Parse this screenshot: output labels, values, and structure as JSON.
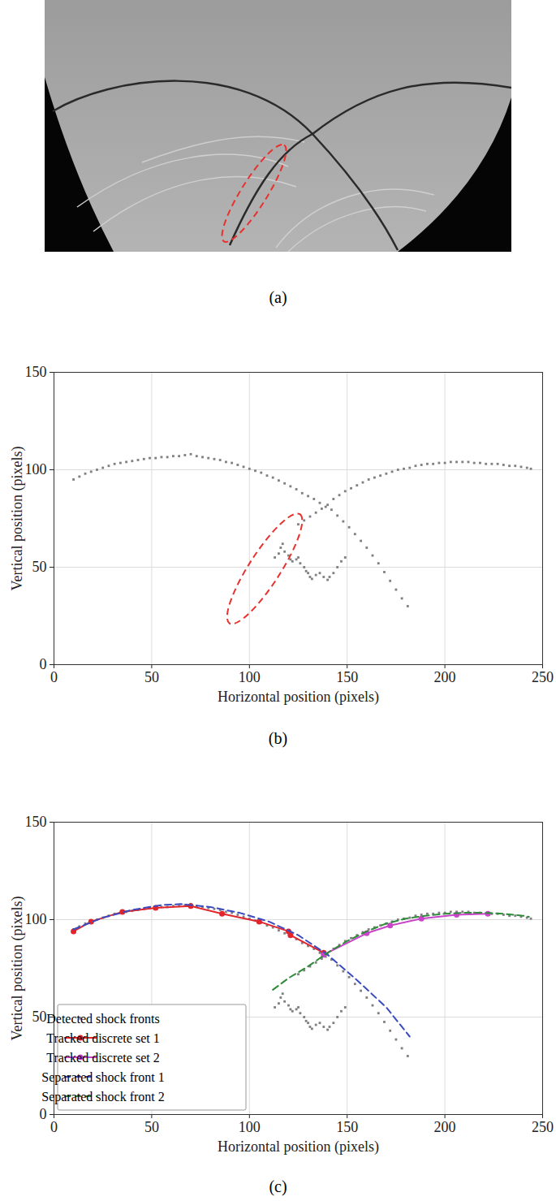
{
  "chart_data": [
    {
      "type": "image",
      "caption": "(a)"
    },
    {
      "type": "scatter",
      "caption": "(b)",
      "xlabel": "Horizontal position (pixels)",
      "ylabel": "Vertical position (pixels)",
      "xlim": [
        0,
        250
      ],
      "ylim": [
        0,
        150
      ],
      "xticks": [
        0,
        50,
        100,
        150,
        200,
        250
      ],
      "yticks": [
        0,
        50,
        100,
        150
      ],
      "grid": true,
      "series": [
        {
          "color": "#808080",
          "marker": "square",
          "x": [
            10,
            13,
            16,
            19,
            22,
            25,
            28,
            31,
            34,
            37,
            40,
            43,
            46,
            49,
            52,
            55,
            58,
            61,
            64,
            67,
            70,
            73,
            76,
            79,
            82,
            85,
            88,
            91,
            94,
            97,
            100,
            103,
            106,
            109,
            112,
            115,
            118,
            121,
            124,
            127,
            130,
            133,
            136,
            139,
            142,
            145,
            148,
            151,
            154,
            157,
            160,
            163,
            166,
            169,
            172,
            175,
            178,
            181,
            125,
            128,
            131,
            134,
            137,
            140,
            143,
            146,
            149,
            152,
            155,
            158,
            161,
            164,
            167,
            170,
            173,
            176,
            179,
            182,
            185,
            188,
            191,
            194,
            197,
            200,
            203,
            206,
            209,
            212,
            215,
            218,
            221,
            224,
            227,
            230,
            233,
            236,
            239,
            242,
            244,
            113,
            115,
            116,
            117,
            118,
            120,
            121,
            122,
            124,
            125,
            126,
            128,
            129,
            130,
            131,
            132,
            134,
            136,
            138,
            140,
            141,
            143,
            145,
            147,
            149
          ],
          "y": [
            95,
            96.5,
            98,
            99,
            100,
            101,
            102,
            103,
            103.5,
            104,
            104.5,
            105,
            105.5,
            106,
            106,
            106.5,
            106.5,
            107,
            107,
            107.5,
            108,
            107,
            106.5,
            106,
            105.5,
            105,
            104,
            103.5,
            102.5,
            101.5,
            100.5,
            99.5,
            98.5,
            97,
            96,
            94.5,
            93,
            91.5,
            90,
            88,
            86.5,
            85,
            83,
            81,
            79.5,
            76.5,
            73.5,
            70.5,
            67,
            63.5,
            60,
            56,
            52,
            47.5,
            43,
            38.5,
            34,
            30,
            72,
            74,
            76,
            78,
            80,
            82,
            85,
            87,
            89,
            90.5,
            92,
            93.5,
            95,
            96,
            97,
            98,
            99,
            100,
            100.5,
            101,
            102,
            102.5,
            103,
            103,
            103.5,
            103.5,
            104,
            104,
            104,
            104,
            103.5,
            103.5,
            103,
            103,
            103,
            102.5,
            102,
            102,
            101.5,
            101,
            100.5,
            55,
            57,
            60,
            62,
            58,
            56,
            54,
            53,
            54,
            55,
            52,
            50,
            48,
            47,
            45,
            44,
            46,
            47,
            45,
            43.5,
            45,
            47,
            50,
            53,
            55
          ]
        }
      ],
      "highlight": {
        "shape": "ellipse",
        "color": "#e8312f",
        "line_style": "dashed",
        "from": [
          90,
          21
        ],
        "to": [
          126,
          77
        ],
        "half_width": 8
      }
    },
    {
      "type": "line",
      "caption": "(c)",
      "xlabel": "Horizontal position (pixels)",
      "ylabel": "Vertical position (pixels)",
      "xlim": [
        0,
        250
      ],
      "ylim": [
        0,
        150
      ],
      "xticks": [
        0,
        50,
        100,
        150,
        200,
        250
      ],
      "yticks": [
        0,
        50,
        100,
        150
      ],
      "grid": true,
      "legend": "lower left",
      "series": [
        {
          "name": "Detected shock fronts",
          "type": "scatter",
          "color": "#808080",
          "marker": "square",
          "x": [
            10,
            13,
            16,
            19,
            22,
            25,
            28,
            31,
            34,
            37,
            40,
            43,
            46,
            49,
            52,
            55,
            58,
            61,
            64,
            67,
            70,
            73,
            76,
            79,
            82,
            85,
            88,
            91,
            94,
            97,
            100,
            103,
            106,
            109,
            112,
            115,
            118,
            121,
            124,
            127,
            130,
            133,
            136,
            139,
            142,
            145,
            148,
            151,
            154,
            157,
            160,
            163,
            166,
            169,
            172,
            175,
            178,
            181,
            125,
            128,
            131,
            134,
            137,
            140,
            143,
            146,
            149,
            152,
            155,
            158,
            161,
            164,
            167,
            170,
            173,
            176,
            179,
            182,
            185,
            188,
            191,
            194,
            197,
            200,
            203,
            206,
            209,
            212,
            215,
            218,
            221,
            224,
            227,
            230,
            233,
            236,
            239,
            242,
            244,
            113,
            115,
            116,
            117,
            118,
            120,
            121,
            122,
            124,
            125,
            126,
            128,
            129,
            130,
            131,
            132,
            134,
            136,
            138,
            140,
            141,
            143,
            145,
            147,
            149
          ],
          "y": [
            95,
            96.5,
            98,
            99,
            100,
            101,
            102,
            103,
            103.5,
            104,
            104.5,
            105,
            105.5,
            106,
            106,
            106.5,
            106.5,
            107,
            107,
            107.5,
            108,
            107,
            106.5,
            106,
            105.5,
            105,
            104,
            103.5,
            102.5,
            101.5,
            100.5,
            99.5,
            98.5,
            97,
            96,
            94.5,
            93,
            91.5,
            90,
            88,
            86.5,
            85,
            83,
            81,
            79.5,
            76.5,
            73.5,
            70.5,
            67,
            63.5,
            60,
            56,
            52,
            47.5,
            43,
            38.5,
            34,
            30,
            72,
            74,
            76,
            78,
            80,
            82,
            85,
            87,
            89,
            90.5,
            92,
            93.5,
            95,
            96,
            97,
            98,
            99,
            100,
            100.5,
            101,
            102,
            102.5,
            103,
            103,
            103.5,
            103.5,
            104,
            104,
            104,
            104,
            103.5,
            103.5,
            103,
            103,
            103,
            102.5,
            102,
            102,
            101.5,
            101,
            100.5,
            55,
            57,
            60,
            62,
            58,
            56,
            54,
            53,
            54,
            55,
            52,
            50,
            48,
            47,
            45,
            44,
            46,
            47,
            45,
            43.5,
            45,
            47,
            50,
            53,
            55
          ]
        },
        {
          "name": "Tracked discrete set 1",
          "type": "line",
          "color": "#e3242b",
          "marker": "circle",
          "line_style": "solid",
          "x": [
            10,
            19,
            35,
            52,
            70,
            86,
            105,
            120,
            121,
            138
          ],
          "y": [
            94,
            99,
            104,
            106,
            107,
            103,
            99,
            94,
            92,
            83
          ]
        },
        {
          "name": "Tracked discrete set 2",
          "type": "line",
          "color": "#c944c9",
          "marker": "circle",
          "line_style": "solid",
          "x": [
            138,
            160,
            172,
            188,
            206,
            222
          ],
          "y": [
            82,
            93,
            97,
            100.5,
            102.5,
            103
          ]
        },
        {
          "name": "Separated shock front 1",
          "type": "line",
          "color": "#3a4bbf",
          "line_style": "dashed",
          "x": [
            10,
            25,
            40,
            55,
            65,
            80,
            95,
            110,
            125,
            140,
            155,
            170,
            182
          ],
          "y": [
            95,
            101,
            105,
            107.5,
            108,
            106.5,
            103.5,
            99,
            92,
            82,
            69,
            55,
            40
          ]
        },
        {
          "name": "Separated shock front 2",
          "type": "line",
          "color": "#2e8b3a",
          "line_style": "dashed",
          "x": [
            112,
            120,
            130,
            140,
            150,
            160,
            170,
            180,
            190,
            200,
            210,
            220,
            230,
            240,
            243
          ],
          "y": [
            64,
            70,
            76,
            83,
            89,
            94,
            98,
            100.5,
            102,
            103,
            103.5,
            103.5,
            103,
            102,
            101.5
          ]
        }
      ]
    }
  ]
}
